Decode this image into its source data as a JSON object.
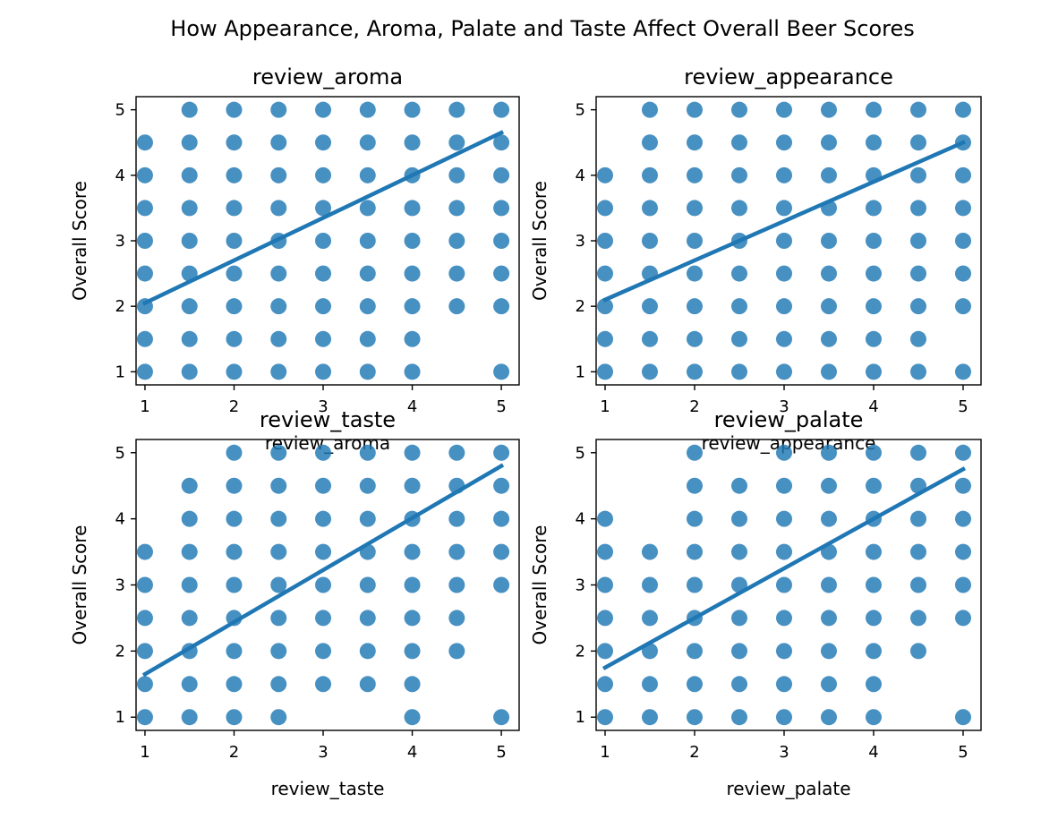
{
  "figure": {
    "title": "How Appearance, Aroma, Palate and Taste Affect Overall Beer Scores",
    "point_color": "#1f77b4",
    "line_color": "#1f77b4"
  },
  "chart_data": [
    {
      "type": "scatter",
      "title": "review_aroma",
      "xlabel": "review_aroma",
      "ylabel": "Overall Score",
      "xlim": [
        0.9,
        5.2
      ],
      "ylim": [
        0.8,
        5.2
      ],
      "xticks": [
        1,
        2,
        3,
        4,
        5
      ],
      "yticks": [
        1,
        2,
        3,
        4,
        5
      ],
      "grid": false,
      "points": [
        [
          1,
          4.5
        ],
        [
          1,
          4
        ],
        [
          1,
          3.5
        ],
        [
          1,
          3
        ],
        [
          1,
          2.5
        ],
        [
          1,
          2
        ],
        [
          1,
          1.5
        ],
        [
          1,
          1
        ],
        [
          1.5,
          5
        ],
        [
          1.5,
          4.5
        ],
        [
          1.5,
          4
        ],
        [
          1.5,
          3.5
        ],
        [
          1.5,
          3
        ],
        [
          1.5,
          2.5
        ],
        [
          1.5,
          2
        ],
        [
          1.5,
          1.5
        ],
        [
          1.5,
          1
        ],
        [
          2,
          5
        ],
        [
          2,
          4.5
        ],
        [
          2,
          4
        ],
        [
          2,
          3.5
        ],
        [
          2,
          3
        ],
        [
          2,
          2.5
        ],
        [
          2,
          2
        ],
        [
          2,
          1.5
        ],
        [
          2,
          1
        ],
        [
          2.5,
          5
        ],
        [
          2.5,
          4.5
        ],
        [
          2.5,
          4
        ],
        [
          2.5,
          3.5
        ],
        [
          2.5,
          3
        ],
        [
          2.5,
          2.5
        ],
        [
          2.5,
          2
        ],
        [
          2.5,
          1.5
        ],
        [
          2.5,
          1
        ],
        [
          3,
          5
        ],
        [
          3,
          4.5
        ],
        [
          3,
          4
        ],
        [
          3,
          3.5
        ],
        [
          3,
          3
        ],
        [
          3,
          2.5
        ],
        [
          3,
          2
        ],
        [
          3,
          1.5
        ],
        [
          3,
          1
        ],
        [
          3.5,
          5
        ],
        [
          3.5,
          4.5
        ],
        [
          3.5,
          4
        ],
        [
          3.5,
          3.5
        ],
        [
          3.5,
          3
        ],
        [
          3.5,
          2.5
        ],
        [
          3.5,
          2
        ],
        [
          3.5,
          1.5
        ],
        [
          3.5,
          1
        ],
        [
          4,
          5
        ],
        [
          4,
          4.5
        ],
        [
          4,
          4
        ],
        [
          4,
          3.5
        ],
        [
          4,
          3
        ],
        [
          4,
          2.5
        ],
        [
          4,
          2
        ],
        [
          4,
          1.5
        ],
        [
          4,
          1
        ],
        [
          4.5,
          5
        ],
        [
          4.5,
          4.5
        ],
        [
          4.5,
          4
        ],
        [
          4.5,
          3.5
        ],
        [
          4.5,
          3
        ],
        [
          4.5,
          2.5
        ],
        [
          4.5,
          2
        ],
        [
          5,
          5
        ],
        [
          5,
          4.5
        ],
        [
          5,
          4
        ],
        [
          5,
          3.5
        ],
        [
          5,
          3
        ],
        [
          5,
          2.5
        ],
        [
          5,
          2
        ],
        [
          5,
          1
        ]
      ],
      "trend": {
        "x": [
          1,
          5
        ],
        "y": [
          2.05,
          4.65
        ]
      }
    },
    {
      "type": "scatter",
      "title": "review_appearance",
      "xlabel": "review_appearance",
      "ylabel": "Overall Score",
      "xlim": [
        0.9,
        5.2
      ],
      "ylim": [
        0.8,
        5.2
      ],
      "xticks": [
        1,
        2,
        3,
        4,
        5
      ],
      "yticks": [
        1,
        2,
        3,
        4,
        5
      ],
      "grid": false,
      "points": [
        [
          1,
          4
        ],
        [
          1,
          3.5
        ],
        [
          1,
          3
        ],
        [
          1,
          2.5
        ],
        [
          1,
          2
        ],
        [
          1,
          1.5
        ],
        [
          1,
          1
        ],
        [
          1.5,
          5
        ],
        [
          1.5,
          4.5
        ],
        [
          1.5,
          4
        ],
        [
          1.5,
          3.5
        ],
        [
          1.5,
          3
        ],
        [
          1.5,
          2.5
        ],
        [
          1.5,
          2
        ],
        [
          1.5,
          1.5
        ],
        [
          1.5,
          1
        ],
        [
          2,
          5
        ],
        [
          2,
          4.5
        ],
        [
          2,
          4
        ],
        [
          2,
          3.5
        ],
        [
          2,
          3
        ],
        [
          2,
          2.5
        ],
        [
          2,
          2
        ],
        [
          2,
          1.5
        ],
        [
          2,
          1
        ],
        [
          2.5,
          5
        ],
        [
          2.5,
          4.5
        ],
        [
          2.5,
          4
        ],
        [
          2.5,
          3.5
        ],
        [
          2.5,
          3
        ],
        [
          2.5,
          2.5
        ],
        [
          2.5,
          2
        ],
        [
          2.5,
          1.5
        ],
        [
          2.5,
          1
        ],
        [
          3,
          5
        ],
        [
          3,
          4.5
        ],
        [
          3,
          4
        ],
        [
          3,
          3.5
        ],
        [
          3,
          3
        ],
        [
          3,
          2.5
        ],
        [
          3,
          2
        ],
        [
          3,
          1.5
        ],
        [
          3,
          1
        ],
        [
          3.5,
          5
        ],
        [
          3.5,
          4.5
        ],
        [
          3.5,
          4
        ],
        [
          3.5,
          3.5
        ],
        [
          3.5,
          3
        ],
        [
          3.5,
          2.5
        ],
        [
          3.5,
          2
        ],
        [
          3.5,
          1.5
        ],
        [
          3.5,
          1
        ],
        [
          4,
          5
        ],
        [
          4,
          4.5
        ],
        [
          4,
          4
        ],
        [
          4,
          3.5
        ],
        [
          4,
          3
        ],
        [
          4,
          2.5
        ],
        [
          4,
          2
        ],
        [
          4,
          1.5
        ],
        [
          4,
          1
        ],
        [
          4.5,
          5
        ],
        [
          4.5,
          4.5
        ],
        [
          4.5,
          4
        ],
        [
          4.5,
          3.5
        ],
        [
          4.5,
          3
        ],
        [
          4.5,
          2.5
        ],
        [
          4.5,
          2
        ],
        [
          4.5,
          1.5
        ],
        [
          4.5,
          1
        ],
        [
          5,
          5
        ],
        [
          5,
          4.5
        ],
        [
          5,
          4
        ],
        [
          5,
          3.5
        ],
        [
          5,
          3
        ],
        [
          5,
          2.5
        ],
        [
          5,
          2
        ],
        [
          5,
          1
        ]
      ],
      "trend": {
        "x": [
          1,
          5
        ],
        "y": [
          2.1,
          4.5
        ]
      }
    },
    {
      "type": "scatter",
      "title": "review_taste",
      "xlabel": "review_taste",
      "ylabel": "Overall Score",
      "xlim": [
        0.9,
        5.2
      ],
      "ylim": [
        0.8,
        5.2
      ],
      "xticks": [
        1,
        2,
        3,
        4,
        5
      ],
      "yticks": [
        1,
        2,
        3,
        4,
        5
      ],
      "grid": false,
      "points": [
        [
          1,
          3.5
        ],
        [
          1,
          3
        ],
        [
          1,
          2.5
        ],
        [
          1,
          2
        ],
        [
          1,
          1.5
        ],
        [
          1,
          1
        ],
        [
          1.5,
          4.5
        ],
        [
          1.5,
          4
        ],
        [
          1.5,
          3.5
        ],
        [
          1.5,
          3
        ],
        [
          1.5,
          2.5
        ],
        [
          1.5,
          2
        ],
        [
          1.5,
          1.5
        ],
        [
          1.5,
          1
        ],
        [
          2,
          5
        ],
        [
          2,
          4.5
        ],
        [
          2,
          4
        ],
        [
          2,
          3.5
        ],
        [
          2,
          3
        ],
        [
          2,
          2.5
        ],
        [
          2,
          2
        ],
        [
          2,
          1.5
        ],
        [
          2,
          1
        ],
        [
          2.5,
          5
        ],
        [
          2.5,
          4.5
        ],
        [
          2.5,
          4
        ],
        [
          2.5,
          3.5
        ],
        [
          2.5,
          3
        ],
        [
          2.5,
          2.5
        ],
        [
          2.5,
          2
        ],
        [
          2.5,
          1.5
        ],
        [
          2.5,
          1
        ],
        [
          3,
          5
        ],
        [
          3,
          4.5
        ],
        [
          3,
          4
        ],
        [
          3,
          3.5
        ],
        [
          3,
          3
        ],
        [
          3,
          2.5
        ],
        [
          3,
          2
        ],
        [
          3,
          1.5
        ],
        [
          3.5,
          5
        ],
        [
          3.5,
          4.5
        ],
        [
          3.5,
          4
        ],
        [
          3.5,
          3.5
        ],
        [
          3.5,
          3
        ],
        [
          3.5,
          2.5
        ],
        [
          3.5,
          2
        ],
        [
          3.5,
          1.5
        ],
        [
          4,
          5
        ],
        [
          4,
          4.5
        ],
        [
          4,
          4
        ],
        [
          4,
          3.5
        ],
        [
          4,
          3
        ],
        [
          4,
          2.5
        ],
        [
          4,
          2
        ],
        [
          4,
          1.5
        ],
        [
          4,
          1
        ],
        [
          4.5,
          5
        ],
        [
          4.5,
          4.5
        ],
        [
          4.5,
          4
        ],
        [
          4.5,
          3.5
        ],
        [
          4.5,
          3
        ],
        [
          4.5,
          2.5
        ],
        [
          4.5,
          2
        ],
        [
          5,
          5
        ],
        [
          5,
          4.5
        ],
        [
          5,
          4
        ],
        [
          5,
          3.5
        ],
        [
          5,
          3
        ],
        [
          5,
          1
        ]
      ],
      "trend": {
        "x": [
          1,
          5
        ],
        "y": [
          1.65,
          4.8
        ]
      }
    },
    {
      "type": "scatter",
      "title": "review_palate",
      "xlabel": "review_palate",
      "ylabel": "Overall Score",
      "xlim": [
        0.9,
        5.2
      ],
      "ylim": [
        0.8,
        5.2
      ],
      "xticks": [
        1,
        2,
        3,
        4,
        5
      ],
      "yticks": [
        1,
        2,
        3,
        4,
        5
      ],
      "grid": false,
      "points": [
        [
          1,
          4
        ],
        [
          1,
          3.5
        ],
        [
          1,
          3
        ],
        [
          1,
          2.5
        ],
        [
          1,
          2
        ],
        [
          1,
          1.5
        ],
        [
          1,
          1
        ],
        [
          1.5,
          3.5
        ],
        [
          1.5,
          3
        ],
        [
          1.5,
          2.5
        ],
        [
          1.5,
          2
        ],
        [
          1.5,
          1.5
        ],
        [
          1.5,
          1
        ],
        [
          2,
          5
        ],
        [
          2,
          4.5
        ],
        [
          2,
          4
        ],
        [
          2,
          3.5
        ],
        [
          2,
          3
        ],
        [
          2,
          2.5
        ],
        [
          2,
          2
        ],
        [
          2,
          1.5
        ],
        [
          2,
          1
        ],
        [
          2.5,
          4.5
        ],
        [
          2.5,
          4
        ],
        [
          2.5,
          3.5
        ],
        [
          2.5,
          3
        ],
        [
          2.5,
          2.5
        ],
        [
          2.5,
          2
        ],
        [
          2.5,
          1.5
        ],
        [
          2.5,
          1
        ],
        [
          3,
          5
        ],
        [
          3,
          4.5
        ],
        [
          3,
          4
        ],
        [
          3,
          3.5
        ],
        [
          3,
          3
        ],
        [
          3,
          2.5
        ],
        [
          3,
          2
        ],
        [
          3,
          1.5
        ],
        [
          3,
          1
        ],
        [
          3.5,
          5
        ],
        [
          3.5,
          4.5
        ],
        [
          3.5,
          4
        ],
        [
          3.5,
          3.5
        ],
        [
          3.5,
          3
        ],
        [
          3.5,
          2.5
        ],
        [
          3.5,
          2
        ],
        [
          3.5,
          1.5
        ],
        [
          3.5,
          1
        ],
        [
          4,
          5
        ],
        [
          4,
          4.5
        ],
        [
          4,
          4
        ],
        [
          4,
          3.5
        ],
        [
          4,
          3
        ],
        [
          4,
          2.5
        ],
        [
          4,
          2
        ],
        [
          4,
          1.5
        ],
        [
          4,
          1
        ],
        [
          4.5,
          5
        ],
        [
          4.5,
          4.5
        ],
        [
          4.5,
          4
        ],
        [
          4.5,
          3.5
        ],
        [
          4.5,
          3
        ],
        [
          4.5,
          2.5
        ],
        [
          4.5,
          2
        ],
        [
          5,
          5
        ],
        [
          5,
          4.5
        ],
        [
          5,
          4
        ],
        [
          5,
          3.5
        ],
        [
          5,
          3
        ],
        [
          5,
          2.5
        ],
        [
          5,
          1
        ]
      ],
      "trend": {
        "x": [
          1,
          5
        ],
        "y": [
          1.75,
          4.75
        ]
      }
    }
  ]
}
